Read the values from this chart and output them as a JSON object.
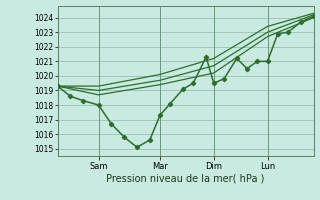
{
  "bg_color": "#c8eae0",
  "grid_color": "#90b8a8",
  "line_color": "#2d6e2d",
  "title": "Pression niveau de la mer( hPa )",
  "ylim": [
    1014.5,
    1024.8
  ],
  "yticks": [
    1015,
    1016,
    1017,
    1018,
    1019,
    1020,
    1021,
    1022,
    1023,
    1024
  ],
  "xtick_labels": [
    "Sam",
    "Mar",
    "Dim",
    "Lun"
  ],
  "xtick_positions": [
    0.16,
    0.4,
    0.61,
    0.82
  ],
  "vline_positions": [
    0.0,
    0.16,
    0.4,
    0.61,
    0.82
  ],
  "series_main": {
    "x": [
      0.0,
      0.05,
      0.1,
      0.16,
      0.21,
      0.26,
      0.31,
      0.36,
      0.4,
      0.44,
      0.49,
      0.53,
      0.58,
      0.61,
      0.65,
      0.7,
      0.74,
      0.78,
      0.82,
      0.86,
      0.9,
      0.95,
      1.0
    ],
    "y": [
      1019.3,
      1018.6,
      1018.3,
      1018.0,
      1016.7,
      1015.8,
      1015.1,
      1015.6,
      1017.3,
      1018.1,
      1019.1,
      1019.5,
      1021.3,
      1019.5,
      1019.8,
      1021.2,
      1020.5,
      1021.0,
      1021.0,
      1022.9,
      1023.0,
      1023.7,
      1024.1
    ],
    "marker": "D",
    "lw": 1.2,
    "ms": 2.2
  },
  "series_smooth": [
    {
      "x": [
        0.0,
        0.16,
        0.4,
        0.61,
        0.82,
        1.0
      ],
      "y": [
        1019.3,
        1019.0,
        1019.7,
        1020.7,
        1023.0,
        1024.2
      ]
    },
    {
      "x": [
        0.0,
        0.16,
        0.4,
        0.61,
        0.82,
        1.0
      ],
      "y": [
        1019.3,
        1019.3,
        1020.1,
        1021.2,
        1023.4,
        1024.3
      ]
    },
    {
      "x": [
        0.0,
        0.16,
        0.4,
        0.61,
        0.82,
        1.0
      ],
      "y": [
        1019.3,
        1018.7,
        1019.4,
        1020.2,
        1022.7,
        1024.0
      ]
    }
  ]
}
